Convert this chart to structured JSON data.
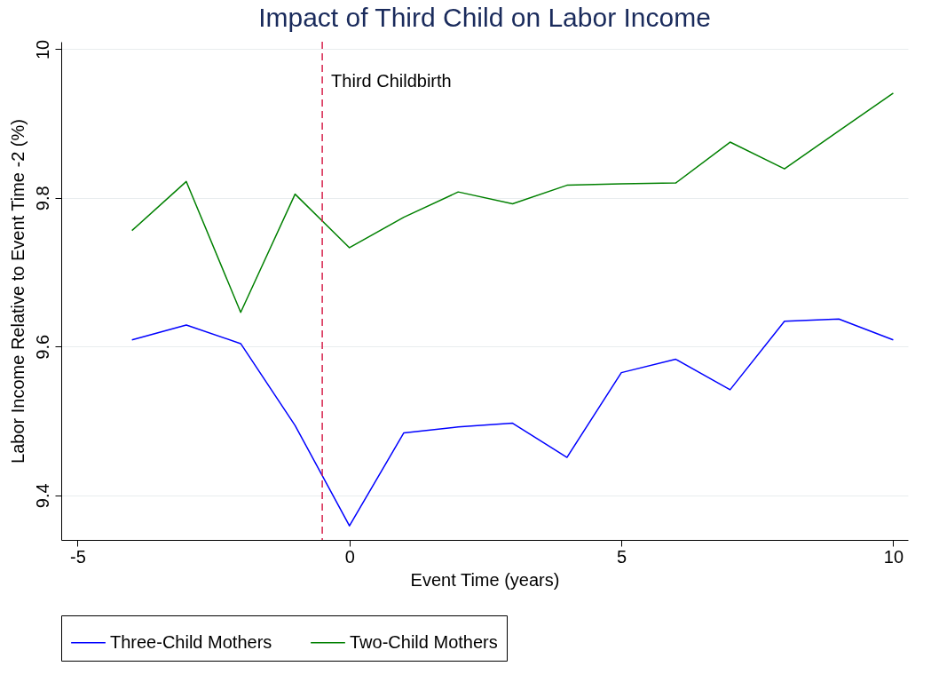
{
  "chart_data": {
    "type": "line",
    "title": "Impact of Third Child on Labor Income",
    "xlabel": "Event Time (years)",
    "ylabel": "Labor Income Relative to Event Time -2 (%)",
    "x": [
      -4,
      -3,
      -2,
      -1,
      0,
      1,
      2,
      3,
      4,
      5,
      6,
      7,
      8,
      9,
      10
    ],
    "series": [
      {
        "name": "Three-Child Mothers",
        "color": "#0000ff",
        "values": [
          9.609,
          9.629,
          9.604,
          9.494,
          9.359,
          9.484,
          9.492,
          9.497,
          9.451,
          9.565,
          9.583,
          9.542,
          9.634,
          9.637,
          9.609
        ]
      },
      {
        "name": "Two-Child Mothers",
        "color": "#008000",
        "values": [
          9.756,
          9.822,
          9.646,
          9.805,
          9.733,
          9.774,
          9.808,
          9.792,
          9.817,
          9.819,
          9.82,
          9.875,
          9.839,
          9.89,
          9.941
        ]
      }
    ],
    "xlim": [
      -5.3,
      10.27
    ],
    "xticks": [
      -5,
      0,
      5,
      10
    ],
    "ylim": [
      9.34,
      10.01
    ],
    "yticks": [
      9.4,
      9.6,
      9.8,
      10
    ],
    "ref_lines": [
      {
        "axis": "x",
        "value": -0.5,
        "label": "Third Childbirth",
        "color": "#d6204a",
        "line_style": "dashed"
      }
    ],
    "grid": "y",
    "legend": "bottom",
    "line_style": "solid",
    "marker": "none"
  }
}
